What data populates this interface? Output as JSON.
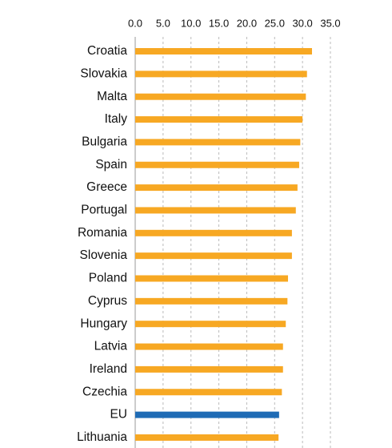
{
  "chart_data": {
    "type": "barh",
    "categories": [
      "Croatia",
      "Slovakia",
      "Malta",
      "Italy",
      "Bulgaria",
      "Spain",
      "Greece",
      "Portugal",
      "Romania",
      "Slovenia",
      "Poland",
      "Cyprus",
      "Hungary",
      "Latvia",
      "Ireland",
      "Czechia",
      "EU",
      "Lithuania"
    ],
    "values": [
      31.7,
      30.8,
      30.6,
      30.0,
      29.6,
      29.4,
      29.1,
      28.8,
      28.1,
      28.1,
      27.4,
      27.3,
      27.0,
      26.5,
      26.5,
      26.3,
      25.8,
      25.7
    ],
    "colors": [
      "#f7a823",
      "#f7a823",
      "#f7a823",
      "#f7a823",
      "#f7a823",
      "#f7a823",
      "#f7a823",
      "#f7a823",
      "#f7a823",
      "#f7a823",
      "#f7a823",
      "#f7a823",
      "#f7a823",
      "#f7a823",
      "#f7a823",
      "#f7a823",
      "#1f6bb5",
      "#f7a823"
    ],
    "xlim": [
      0,
      35
    ],
    "xticks": [
      {
        "value": 0,
        "label": "0.0"
      },
      {
        "value": 5,
        "label": "5.0"
      },
      {
        "value": 10,
        "label": "10.0"
      },
      {
        "value": 15,
        "label": "15.0"
      },
      {
        "value": 20,
        "label": "20.0"
      },
      {
        "value": 25,
        "label": "25.0"
      },
      {
        "value": 30,
        "label": "30.0"
      },
      {
        "value": 35,
        "label": "35.0"
      }
    ],
    "grid": true
  }
}
